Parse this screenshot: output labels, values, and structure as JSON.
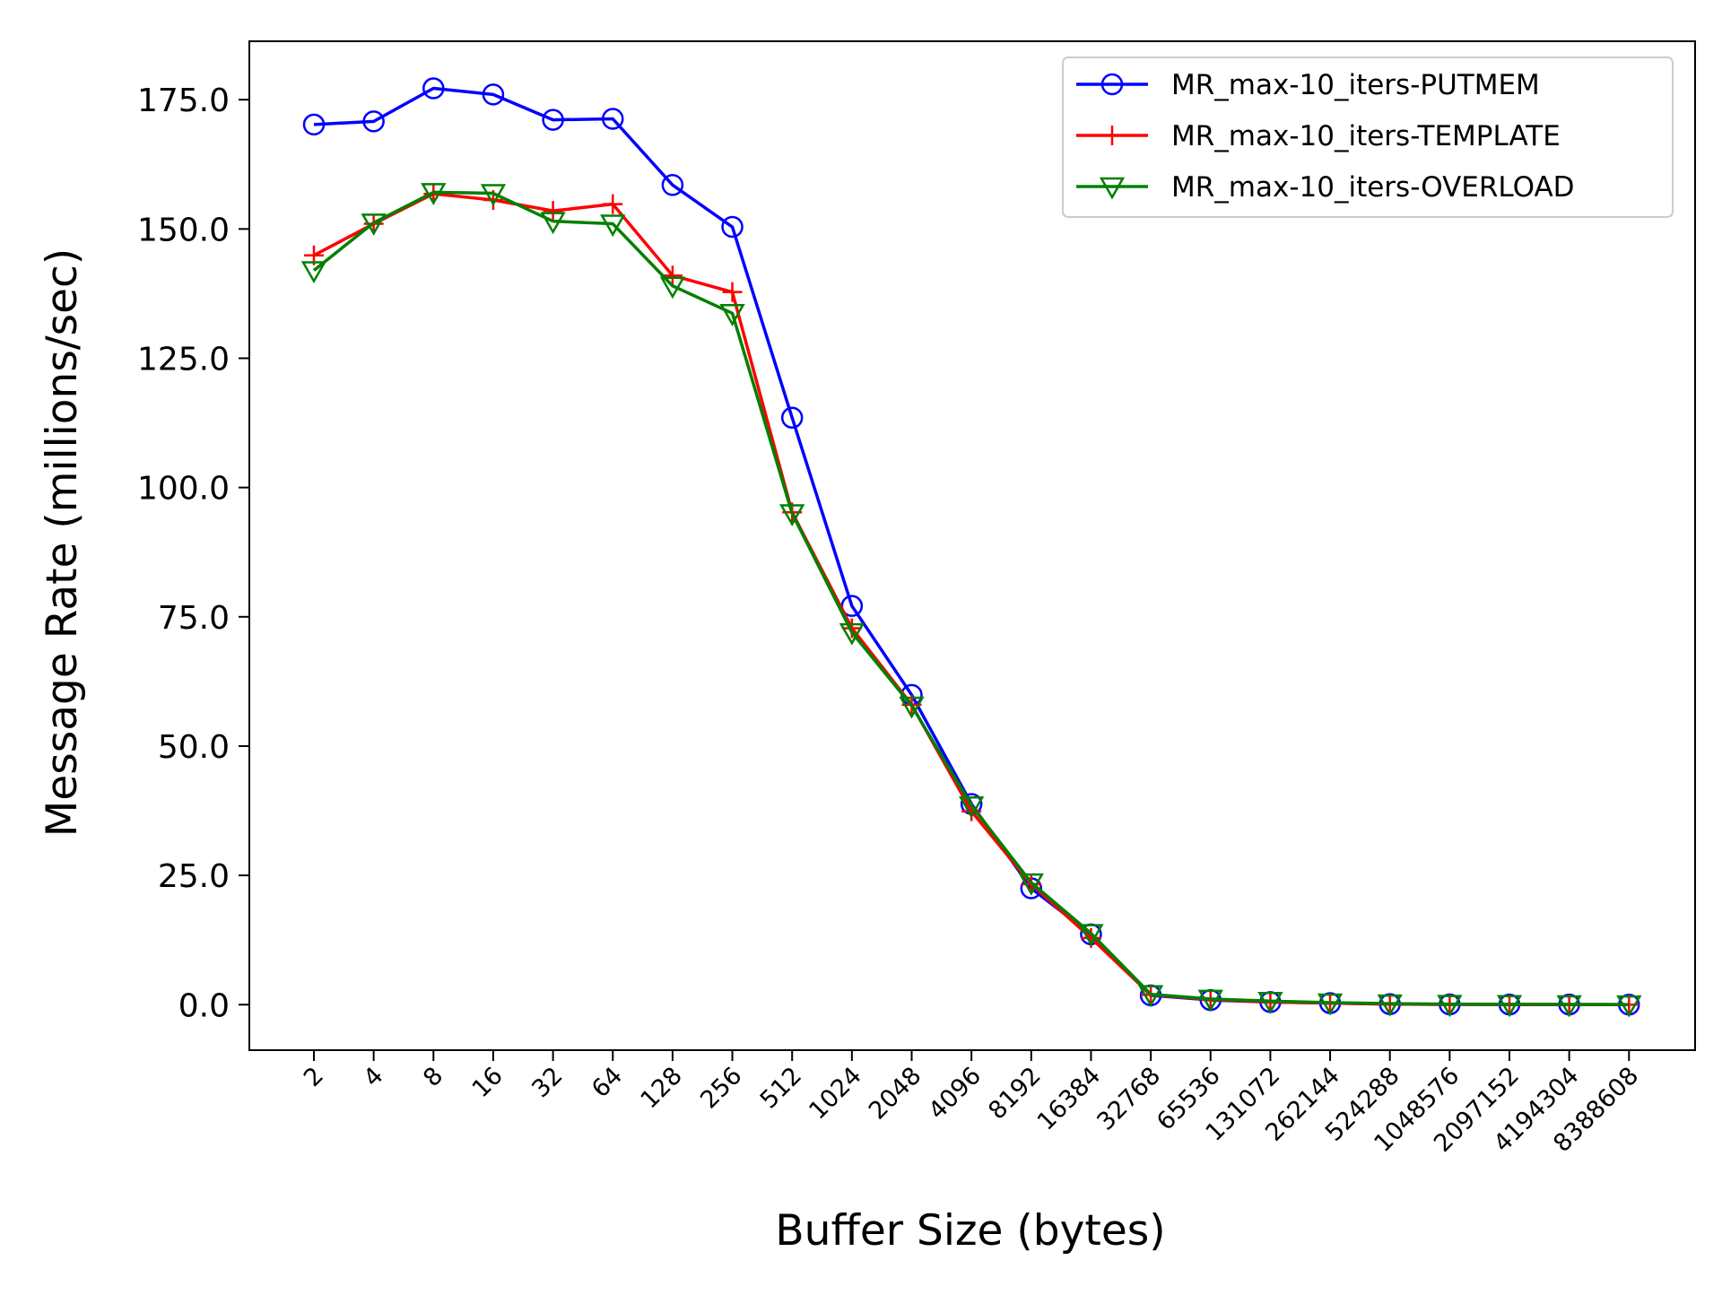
{
  "chart_data": {
    "type": "line",
    "title": "",
    "xlabel": "Buffer Size (bytes)",
    "ylabel": "Message Rate (millions/sec)",
    "categories": [
      "2",
      "4",
      "8",
      "16",
      "32",
      "64",
      "128",
      "256",
      "512",
      "1024",
      "2048",
      "4096",
      "8192",
      "16384",
      "32768",
      "65536",
      "131072",
      "262144",
      "524288",
      "1048576",
      "2097152",
      "4194304",
      "8388608"
    ],
    "yticks": [
      "0.0",
      "25.0",
      "50.0",
      "75.0",
      "100.0",
      "125.0",
      "150.0",
      "175.0"
    ],
    "ylim": [
      -8.8,
      186.3
    ],
    "grid": false,
    "legend_position": "top-right",
    "series": [
      {
        "name": "MR_max-10_iters-PUTMEM",
        "color": "#0000ff",
        "marker": "circle",
        "values": [
          170.2,
          170.8,
          177.2,
          176.0,
          171.1,
          171.3,
          158.5,
          150.4,
          113.5,
          77.1,
          59.9,
          38.8,
          22.5,
          13.6,
          1.8,
          0.9,
          0.5,
          0.3,
          0.1,
          0.05,
          0.03,
          0.02,
          0.01
        ]
      },
      {
        "name": "MR_max-10_iters-TEMPLATE",
        "color": "#ff0000",
        "marker": "plus",
        "values": [
          144.9,
          151.0,
          156.8,
          155.6,
          153.5,
          154.8,
          141.0,
          137.8,
          95.2,
          72.8,
          58.0,
          37.4,
          23.3,
          12.9,
          1.9,
          1.0,
          0.5,
          0.3,
          0.1,
          0.05,
          0.03,
          0.02,
          0.01
        ]
      },
      {
        "name": "MR_max-10_iters-OVERLOAD",
        "color": "#008000",
        "marker": "triangle-down",
        "values": [
          142.0,
          151.2,
          157.1,
          156.9,
          151.5,
          151.0,
          139.0,
          133.7,
          95.0,
          72.0,
          57.8,
          38.5,
          23.6,
          13.8,
          2.0,
          1.1,
          0.7,
          0.4,
          0.2,
          0.1,
          0.08,
          0.05,
          0.03
        ]
      }
    ]
  }
}
